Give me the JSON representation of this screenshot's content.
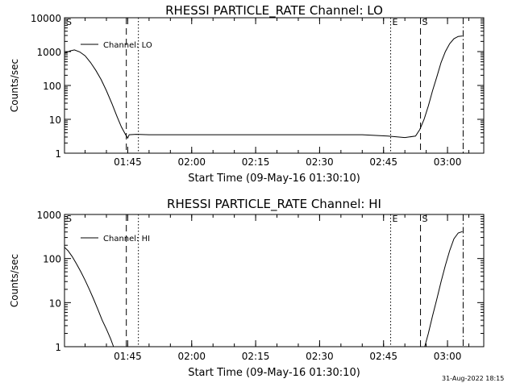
{
  "chart_data": [
    {
      "type": "line",
      "title": "RHESSI PARTICLE_RATE Channel: LO",
      "xlabel": "Start Time (09-May-16 01:30:10)",
      "ylabel": "Counts/sec",
      "yscale": "log",
      "xlim": [
        "01:30:10",
        "03:08:30"
      ],
      "ylim": [
        1,
        10000
      ],
      "x_tick_labels": [
        "01:45",
        "02:00",
        "02:15",
        "02:30",
        "02:45",
        "03:00"
      ],
      "y_tick_labels": [
        "1",
        "10",
        "100",
        "1000",
        "10000"
      ],
      "legend": [
        "Channel: LO"
      ],
      "grid": false,
      "markers": [
        {
          "time": "01:44:40",
          "style": "dashed",
          "label": ""
        },
        {
          "time": "01:47:30",
          "style": "dotted",
          "label": ""
        },
        {
          "time": "02:46:40",
          "style": "dotted",
          "label": "E"
        },
        {
          "time": "02:53:40",
          "style": "dashed",
          "label": "S"
        },
        {
          "time": "03:03:40",
          "style": "dash-dot",
          "label": ""
        }
      ],
      "corner_label": "S",
      "series": [
        {
          "name": "Channel: LO",
          "points": [
            [
              "01:30:10",
              900
            ],
            [
              "01:31:30",
              1050
            ],
            [
              "01:32:30",
              1120
            ],
            [
              "01:33:45",
              980
            ],
            [
              "01:35:00",
              750
            ],
            [
              "01:36:15",
              480
            ],
            [
              "01:37:30",
              280
            ],
            [
              "01:38:45",
              150
            ],
            [
              "01:40:00",
              70
            ],
            [
              "01:41:15",
              30
            ],
            [
              "01:42:30",
              12
            ],
            [
              "01:43:30",
              6
            ],
            [
              "01:44:30",
              3.5
            ],
            [
              "01:45:00",
              2.8
            ],
            [
              "01:45:20",
              3.5
            ],
            [
              "01:47:00",
              3.6
            ],
            [
              "01:50:00",
              3.5
            ],
            [
              "02:00:00",
              3.5
            ],
            [
              "02:10:00",
              3.5
            ],
            [
              "02:20:00",
              3.5
            ],
            [
              "02:30:00",
              3.5
            ],
            [
              "02:40:00",
              3.5
            ],
            [
              "02:46:00",
              3.2
            ],
            [
              "02:50:00",
              2.9
            ],
            [
              "02:52:30",
              3.2
            ],
            [
              "02:53:30",
              5
            ],
            [
              "02:54:30",
              10
            ],
            [
              "02:55:30",
              25
            ],
            [
              "02:56:30",
              70
            ],
            [
              "02:57:30",
              180
            ],
            [
              "02:58:30",
              480
            ],
            [
              "02:59:30",
              1000
            ],
            [
              "03:00:30",
              1700
            ],
            [
              "03:01:30",
              2400
            ],
            [
              "03:02:30",
              2800
            ],
            [
              "03:03:30",
              2900
            ]
          ]
        }
      ]
    },
    {
      "type": "line",
      "title": "RHESSI PARTICLE_RATE Channel: HI",
      "xlabel": "Start Time (09-May-16 01:30:10)",
      "ylabel": "Counts/sec",
      "yscale": "log",
      "xlim": [
        "01:30:10",
        "03:08:30"
      ],
      "ylim": [
        1,
        1000
      ],
      "x_tick_labels": [
        "01:45",
        "02:00",
        "02:15",
        "02:30",
        "02:45",
        "03:00"
      ],
      "y_tick_labels": [
        "1",
        "10",
        "100",
        "1000"
      ],
      "legend": [
        "Channel: HI"
      ],
      "grid": false,
      "markers": [
        {
          "time": "01:44:40",
          "style": "dashed",
          "label": ""
        },
        {
          "time": "01:47:30",
          "style": "dotted",
          "label": ""
        },
        {
          "time": "02:46:40",
          "style": "dotted",
          "label": "E"
        },
        {
          "time": "02:53:40",
          "style": "dashed",
          "label": "S"
        },
        {
          "time": "03:03:40",
          "style": "dash-dot",
          "label": ""
        }
      ],
      "corner_label": "S",
      "series": [
        {
          "name": "Channel: HI",
          "points": [
            [
              "01:30:10",
              180
            ],
            [
              "01:31:00",
              150
            ],
            [
              "01:32:00",
              110
            ],
            [
              "01:33:00",
              75
            ],
            [
              "01:34:00",
              50
            ],
            [
              "01:35:00",
              32
            ],
            [
              "01:36:00",
              20
            ],
            [
              "01:37:00",
              12
            ],
            [
              "01:38:00",
              7
            ],
            [
              "01:39:00",
              4
            ],
            [
              "01:40:00",
              2.5
            ],
            [
              "01:41:00",
              1.5
            ],
            [
              "01:41:40",
              1
            ]
          ]
        },
        {
          "name": "Channel: HI",
          "points": [
            [
              "02:54:40",
              1
            ],
            [
              "02:55:30",
              2
            ],
            [
              "02:56:30",
              5
            ],
            [
              "02:57:30",
              12
            ],
            [
              "02:58:30",
              30
            ],
            [
              "02:59:30",
              70
            ],
            [
              "03:00:30",
              150
            ],
            [
              "03:01:30",
              280
            ],
            [
              "03:02:30",
              380
            ],
            [
              "03:03:30",
              410
            ]
          ]
        }
      ]
    }
  ],
  "footer": {
    "timestamp": "31-Aug-2022 18:15"
  }
}
